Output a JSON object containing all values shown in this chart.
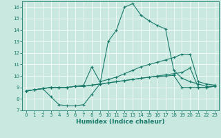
{
  "xlabel": "Humidex (Indice chaleur)",
  "ylabel": "",
  "bg_color": "#c8e8e0",
  "line_color": "#1a7a6a",
  "grid_color": "#ffffff",
  "xlim": [
    -0.5,
    23.5
  ],
  "ylim": [
    7,
    16.5
  ],
  "yticks": [
    7,
    8,
    9,
    10,
    11,
    12,
    13,
    14,
    15,
    16
  ],
  "xticks": [
    0,
    1,
    2,
    3,
    4,
    5,
    6,
    7,
    8,
    9,
    10,
    11,
    12,
    13,
    14,
    15,
    16,
    17,
    18,
    19,
    20,
    21,
    22,
    23
  ],
  "line1_x": [
    0,
    1,
    2,
    3,
    4,
    5,
    6,
    7,
    8,
    9,
    10,
    11,
    12,
    13,
    14,
    15,
    16,
    17,
    18,
    19,
    20,
    21,
    22,
    23
  ],
  "line1_y": [
    8.7,
    8.8,
    8.9,
    8.2,
    7.5,
    7.4,
    7.4,
    7.5,
    8.4,
    9.3,
    13.0,
    14.0,
    16.0,
    16.3,
    15.3,
    14.8,
    14.4,
    14.1,
    10.5,
    9.8,
    9.5,
    9.3,
    9.1,
    9.1
  ],
  "line2_x": [
    0,
    1,
    2,
    3,
    4,
    5,
    6,
    7,
    8,
    9,
    10,
    11,
    12,
    13,
    14,
    15,
    16,
    17,
    18,
    19,
    20,
    21,
    22,
    23
  ],
  "line2_y": [
    8.7,
    8.8,
    8.9,
    9.0,
    9.0,
    9.0,
    9.1,
    9.2,
    10.8,
    9.5,
    9.7,
    9.9,
    10.2,
    10.5,
    10.8,
    11.0,
    11.2,
    11.4,
    11.6,
    11.9,
    11.9,
    9.5,
    9.3,
    9.2
  ],
  "line3_x": [
    0,
    1,
    2,
    3,
    4,
    5,
    6,
    7,
    8,
    9,
    10,
    11,
    12,
    13,
    14,
    15,
    16,
    17,
    18,
    19,
    20,
    21,
    22,
    23
  ],
  "line3_y": [
    8.7,
    8.8,
    8.9,
    9.0,
    9.0,
    9.0,
    9.1,
    9.1,
    9.2,
    9.3,
    9.4,
    9.5,
    9.6,
    9.7,
    9.8,
    9.9,
    10.0,
    10.1,
    10.2,
    10.3,
    10.7,
    9.0,
    9.0,
    9.1
  ],
  "line4_x": [
    0,
    1,
    2,
    3,
    4,
    5,
    6,
    7,
    8,
    9,
    10,
    11,
    12,
    13,
    14,
    15,
    16,
    17,
    18,
    19,
    20,
    21,
    22,
    23
  ],
  "line4_y": [
    8.7,
    8.8,
    8.9,
    9.0,
    9.0,
    9.0,
    9.1,
    9.1,
    9.2,
    9.3,
    9.4,
    9.5,
    9.6,
    9.7,
    9.8,
    9.9,
    9.95,
    10.0,
    10.05,
    9.0,
    9.0,
    9.0,
    9.0,
    9.1
  ]
}
